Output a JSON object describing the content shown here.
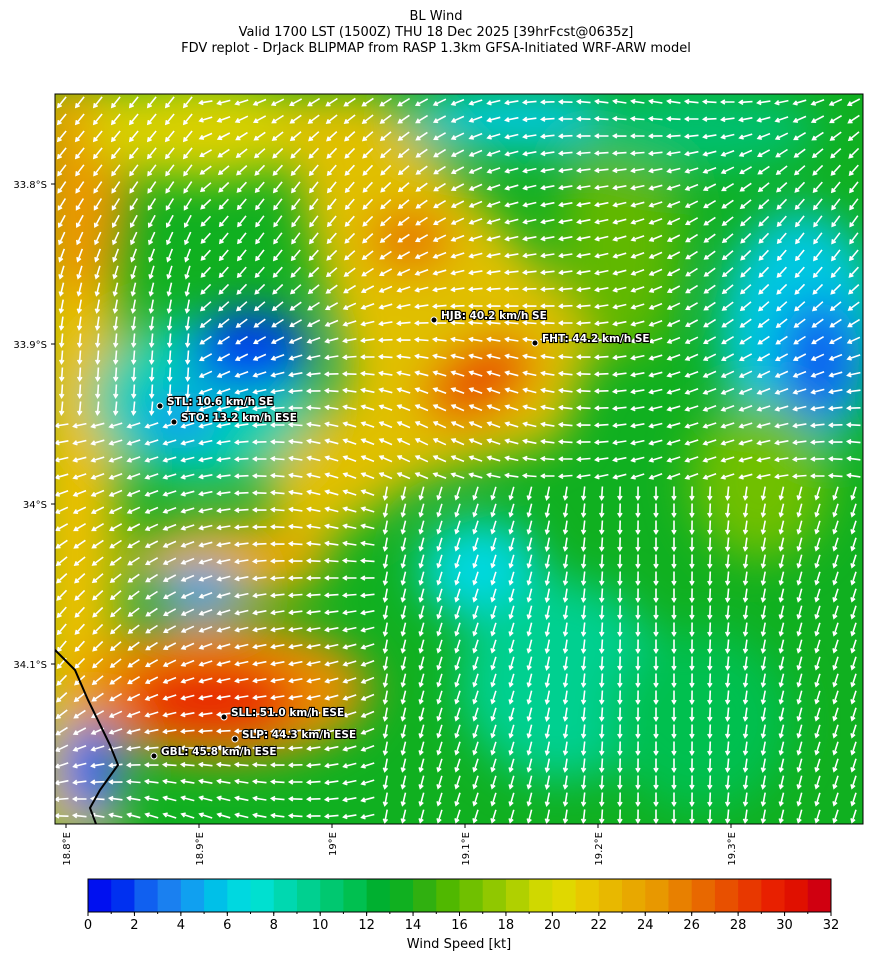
{
  "header": {
    "title": "BL Wind",
    "subtitle": "Valid 1700 LST (1500Z) THU 18 Dec 2025 [39hrFcst@0635z]",
    "source": "FDV replot - DrJack BLIPMAP from RASP 1.3km GFSA-Initiated WRF-ARW model"
  },
  "map": {
    "lat_labels": [
      "33.8°S",
      "33.9°S",
      "34°S",
      "34.1°S"
    ],
    "lon_labels": [
      "18.8°E",
      "18.9°E",
      "19°E",
      "19.1°E",
      "19.2°E",
      "19.3°E"
    ],
    "stations": [
      {
        "label": "HJB: 40.2 km/h SE"
      },
      {
        "label": "FHT: 44.2 km/h SE"
      },
      {
        "label": "STL: 10.6 km/h SE"
      },
      {
        "label": "STO: 13.2 km/h ESE"
      },
      {
        "label": "SLL: 51.0 km/h ESE"
      },
      {
        "label": "SLP: 44.3 km/h ESE"
      },
      {
        "label": "GBL: 45.8 km/h ESE"
      }
    ]
  },
  "colorbar": {
    "label": "Wind Speed [kt]",
    "lim": [
      0,
      32
    ],
    "ticks": [
      0,
      2,
      4,
      6,
      8,
      10,
      12,
      14,
      16,
      18,
      20,
      22,
      24,
      26,
      28,
      30,
      32
    ],
    "colors": [
      "#0010f0",
      "#0030f0",
      "#1060f0",
      "#1a80f0",
      "#10a0f0",
      "#00c0e8",
      "#00d8e0",
      "#00e0d0",
      "#00d8b0",
      "#00d090",
      "#00c870",
      "#00c050",
      "#00b030",
      "#10b020",
      "#30b010",
      "#50b800",
      "#70c000",
      "#90c800",
      "#b0d000",
      "#d0d800",
      "#e0d800",
      "#e8c800",
      "#e8b800",
      "#e8a800",
      "#e89800",
      "#e88000",
      "#e86800",
      "#e85000",
      "#e83800",
      "#e82000",
      "#e01000",
      "#d00010"
    ]
  }
}
